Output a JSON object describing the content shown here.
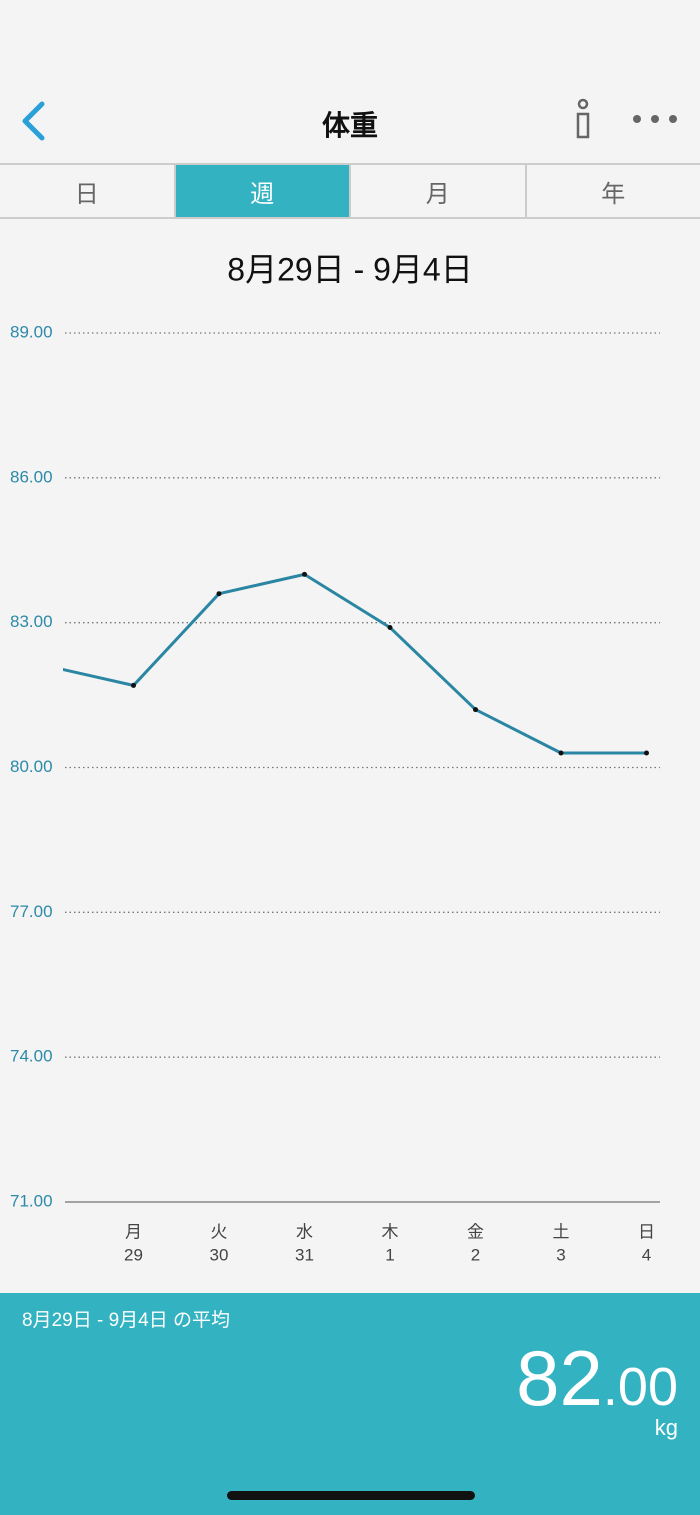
{
  "header": {
    "title": "体重"
  },
  "tabs": [
    "日",
    "週",
    "月",
    "年"
  ],
  "active_tab": 1,
  "chart_data": {
    "type": "line",
    "title": "8月29日 - 9月4日",
    "categories": [
      null,
      "月",
      "火",
      "水",
      "木",
      "金",
      "土",
      "日"
    ],
    "day_numbers": [
      null,
      "29",
      "30",
      "31",
      "1",
      "2",
      "3",
      "4"
    ],
    "values": [
      82.1,
      81.7,
      83.6,
      84.0,
      82.9,
      81.2,
      80.3,
      80.3
    ],
    "color": "#2a86a3",
    "ylim": [
      71,
      89
    ],
    "yticks": [
      {
        "value": 71,
        "label": "71.00"
      },
      {
        "value": 74,
        "label": "74.00"
      },
      {
        "value": 77,
        "label": "77.00"
      },
      {
        "value": 80,
        "label": "80.00"
      },
      {
        "value": 83,
        "label": "83.00"
      },
      {
        "value": 86,
        "label": "86.00"
      },
      {
        "value": 89,
        "label": "89.00"
      }
    ],
    "grid": true
  },
  "summary": {
    "label": "8月29日 - 9月4日 の平均",
    "integer": "82",
    "decimal": ".00",
    "unit": "kg"
  }
}
